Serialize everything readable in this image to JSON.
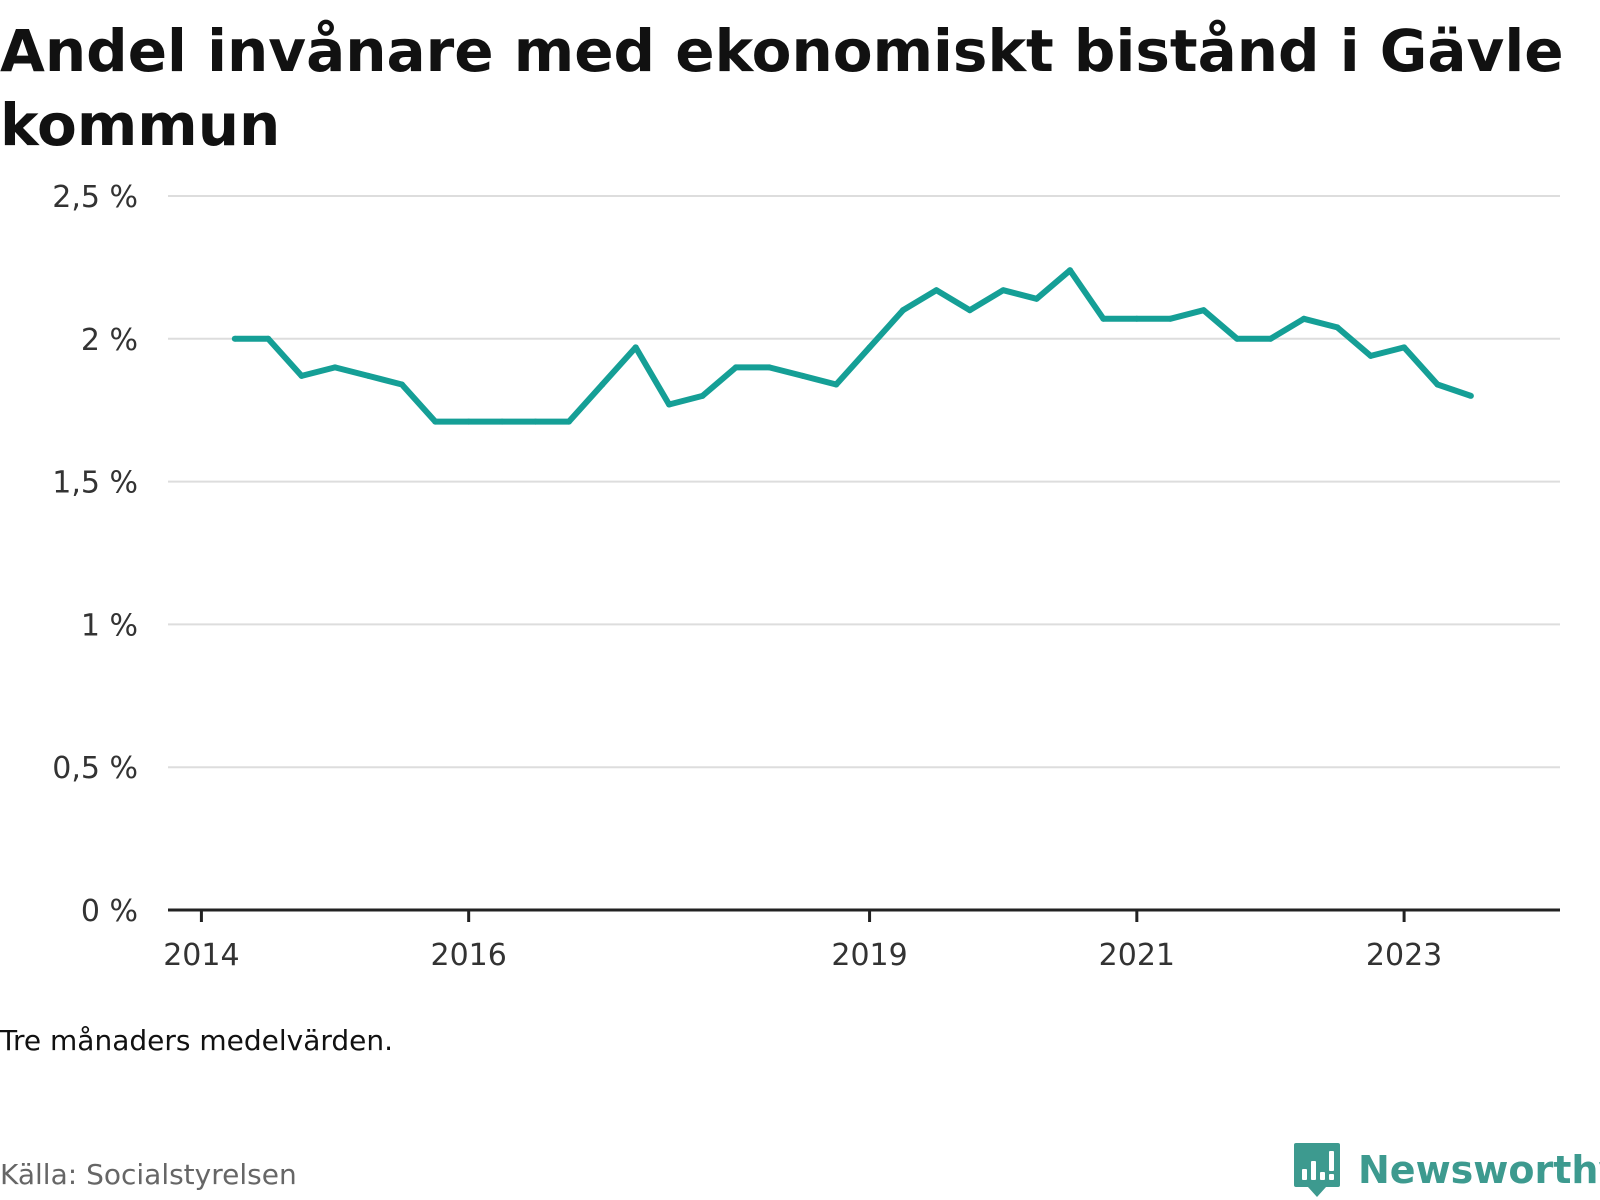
{
  "title": "Andel invånare med ekonomiskt bistånd i Gävle kommun",
  "note": "Tre månaders medelvärden.",
  "source": "Källa: Socialstyrelsen",
  "brand": {
    "name": "Newsworthy",
    "logo_icon": "bar-chart-speech-bubble-icon"
  },
  "colors": {
    "line": "#159f96",
    "grid": "#dddddd",
    "axis": "#222222",
    "brand": "#3d9a8f"
  },
  "chart_data": {
    "type": "line",
    "title": "Andel invånare med ekonomiskt bistånd i Gävle kommun",
    "xlabel": "",
    "ylabel": "",
    "ylim": [
      0,
      2.5
    ],
    "xlim": [
      "2013-10",
      "2024-03"
    ],
    "y_ticks": [
      {
        "value": 0,
        "label": "0 %"
      },
      {
        "value": 0.5,
        "label": "0,5 %"
      },
      {
        "value": 1,
        "label": "1 %"
      },
      {
        "value": 1.5,
        "label": "1,5 %"
      },
      {
        "value": 2,
        "label": "2 %"
      },
      {
        "value": 2.5,
        "label": "2,5 %"
      }
    ],
    "x_ticks": [
      {
        "value": "2014-01",
        "label": "2014"
      },
      {
        "value": "2016-01",
        "label": "2016"
      },
      {
        "value": "2019-01",
        "label": "2019"
      },
      {
        "value": "2021-01",
        "label": "2021"
      },
      {
        "value": "2023-01",
        "label": "2023"
      }
    ],
    "grid": true,
    "legend": "none",
    "series": [
      {
        "x": [
          "2014-04",
          "2014-07",
          "2014-10",
          "2015-01",
          "2015-04",
          "2015-07",
          "2015-10",
          "2016-01",
          "2016-04",
          "2016-07",
          "2016-10",
          "2017-01",
          "2017-04",
          "2017-07",
          "2017-10",
          "2018-01",
          "2018-04",
          "2018-07",
          "2018-10",
          "2019-01",
          "2019-04",
          "2019-07",
          "2019-10",
          "2020-01",
          "2020-04",
          "2020-07",
          "2020-10",
          "2021-01",
          "2021-04",
          "2021-07",
          "2021-10",
          "2022-01",
          "2022-04",
          "2022-07",
          "2022-10",
          "2023-01",
          "2023-04",
          "2023-07"
        ],
        "values": [
          2.0,
          2.0,
          1.87,
          1.9,
          1.87,
          1.84,
          1.71,
          1.71,
          1.71,
          1.71,
          1.71,
          1.84,
          1.97,
          1.77,
          1.8,
          1.9,
          1.9,
          1.87,
          1.84,
          1.97,
          2.1,
          2.17,
          2.1,
          2.17,
          2.14,
          2.24,
          2.07,
          2.07,
          2.07,
          2.1,
          2.0,
          2.0,
          2.07,
          2.04,
          1.94,
          1.97,
          1.84,
          1.8
        ]
      }
    ]
  }
}
